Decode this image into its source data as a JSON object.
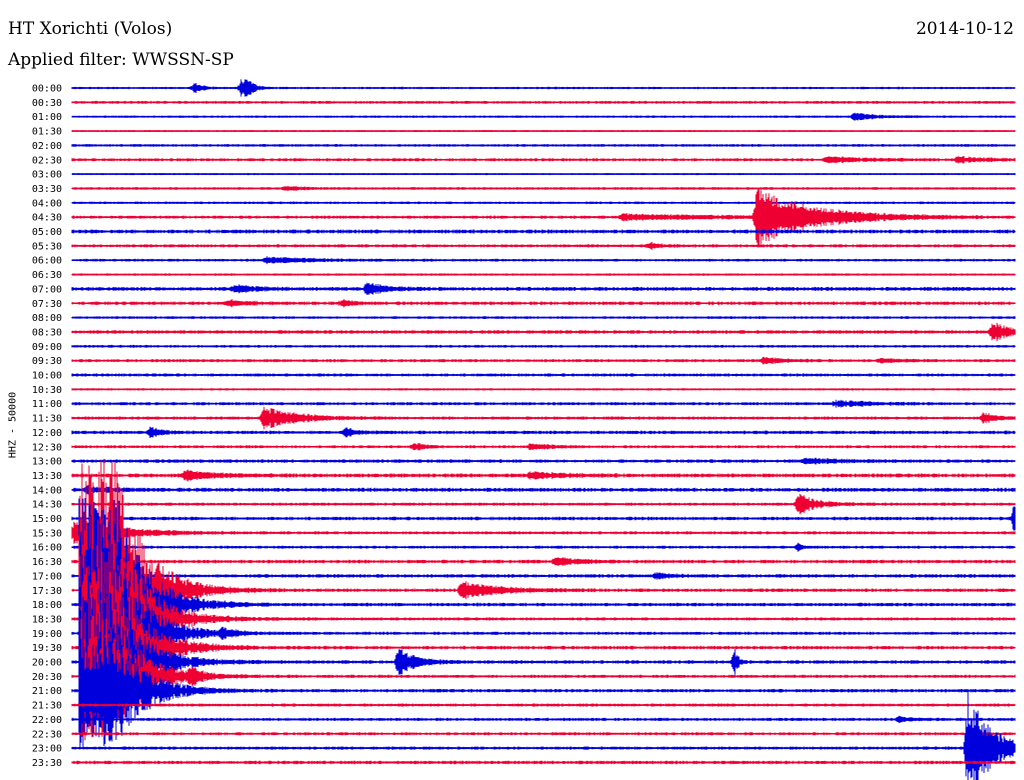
{
  "header": {
    "station": "HT Xorichti (Volos)",
    "date": "2014-10-12",
    "filter": "Applied filter: WWSSN-SP"
  },
  "channel_label": "HHZ - 50000",
  "colors": {
    "blue": "#0000dd",
    "red": "#ee0033"
  },
  "chart_data": {
    "type": "seismogram-helicorder",
    "rows": [
      "00:00",
      "00:30",
      "01:00",
      "01:30",
      "02:00",
      "02:30",
      "03:00",
      "03:30",
      "04:00",
      "04:30",
      "05:00",
      "05:30",
      "06:00",
      "06:30",
      "07:00",
      "07:30",
      "08:00",
      "08:30",
      "09:00",
      "09:30",
      "10:00",
      "10:30",
      "11:00",
      "11:30",
      "12:00",
      "12:30",
      "13:00",
      "13:30",
      "14:00",
      "14:30",
      "15:00",
      "15:30",
      "16:00",
      "16:30",
      "17:00",
      "17:30",
      "18:00",
      "18:30",
      "19:00",
      "19:30",
      "20:00",
      "20:30",
      "21:00",
      "21:30",
      "22:00",
      "22:30",
      "23:00",
      "23:30"
    ],
    "noise": [
      1.2,
      1.5,
      1.2,
      1.0,
      1.4,
      1.6,
      1.0,
      1.4,
      1.3,
      1.6,
      2.0,
      1.6,
      1.4,
      1.2,
      2.0,
      1.8,
      1.4,
      1.8,
      1.4,
      1.6,
      1.6,
      1.2,
      1.6,
      1.6,
      1.8,
      1.5,
      1.8,
      2.0,
      2.0,
      1.6,
      1.8,
      1.6,
      1.5,
      1.8,
      1.8,
      1.8,
      1.8,
      1.6,
      1.6,
      1.8,
      1.8,
      1.6,
      1.8,
      1.6,
      1.6,
      1.6,
      1.6,
      1.8
    ],
    "events": [
      {
        "row": "00:00",
        "minute": 3.9,
        "amp": 5,
        "dur": 0.4
      },
      {
        "row": "00:00",
        "minute": 5.4,
        "amp": 9,
        "dur": 0.3
      },
      {
        "row": "00:00",
        "minute": 5.6,
        "amp": 7,
        "dur": 0.3
      },
      {
        "row": "01:00",
        "minute": 24.9,
        "amp": 4,
        "dur": 1.0
      },
      {
        "row": "02:30",
        "minute": 24.0,
        "amp": 3,
        "dur": 1.4
      },
      {
        "row": "02:30",
        "minute": 28.2,
        "amp": 3,
        "dur": 1.2
      },
      {
        "row": "03:30",
        "minute": 6.8,
        "amp": 2,
        "dur": 0.8
      },
      {
        "row": "04:30",
        "minute": 21.8,
        "amp": 30,
        "dur": 2.4
      },
      {
        "row": "04:30",
        "minute": 17.5,
        "amp": 3,
        "dur": 4.0
      },
      {
        "row": "05:30",
        "minute": 18.4,
        "amp": 3,
        "dur": 0.5
      },
      {
        "row": "06:00",
        "minute": 6.2,
        "amp": 3,
        "dur": 2.0
      },
      {
        "row": "07:00",
        "minute": 9.4,
        "amp": 6,
        "dur": 0.8
      },
      {
        "row": "07:00",
        "minute": 5.2,
        "amp": 4,
        "dur": 0.8
      },
      {
        "row": "07:30",
        "minute": 5.0,
        "amp": 3,
        "dur": 0.8
      },
      {
        "row": "07:30",
        "minute": 8.6,
        "amp": 3,
        "dur": 0.6
      },
      {
        "row": "08:30",
        "minute": 29.3,
        "amp": 10,
        "dur": 0.8
      },
      {
        "row": "09:30",
        "minute": 22.0,
        "amp": 3,
        "dur": 1.0
      },
      {
        "row": "09:30",
        "minute": 25.7,
        "amp": 2,
        "dur": 1.0
      },
      {
        "row": "11:00",
        "minute": 24.3,
        "amp": 3,
        "dur": 1.5
      },
      {
        "row": "11:30",
        "minute": 6.1,
        "amp": 12,
        "dur": 1.4
      },
      {
        "row": "11:30",
        "minute": 29.0,
        "amp": 6,
        "dur": 0.5
      },
      {
        "row": "12:00",
        "minute": 2.5,
        "amp": 5,
        "dur": 0.5
      },
      {
        "row": "12:00",
        "minute": 8.7,
        "amp": 4,
        "dur": 0.5
      },
      {
        "row": "12:30",
        "minute": 10.9,
        "amp": 4,
        "dur": 0.5
      },
      {
        "row": "12:30",
        "minute": 14.6,
        "amp": 3,
        "dur": 1.0
      },
      {
        "row": "13:00",
        "minute": 23.3,
        "amp": 3,
        "dur": 1.5
      },
      {
        "row": "13:30",
        "minute": 3.6,
        "amp": 5,
        "dur": 1.2
      },
      {
        "row": "13:30",
        "minute": 14.6,
        "amp": 3,
        "dur": 1.5
      },
      {
        "row": "14:00",
        "minute": 0.5,
        "amp": 3,
        "dur": 1.2
      },
      {
        "row": "14:30",
        "minute": 23.1,
        "amp": 11,
        "dur": 0.8
      },
      {
        "row": "15:00",
        "minute": 30.0,
        "amp": 18,
        "dur": 0.2
      },
      {
        "row": "15:30",
        "minute": 0.1,
        "amp": 16,
        "dur": 1.8
      },
      {
        "row": "16:00",
        "minute": 23.1,
        "amp": 4,
        "dur": 0.3
      },
      {
        "row": "16:30",
        "minute": 15.4,
        "amp": 4,
        "dur": 1.0
      },
      {
        "row": "17:00",
        "minute": 18.6,
        "amp": 4,
        "dur": 0.5
      },
      {
        "row": "17:30",
        "minute": 12.4,
        "amp": 9,
        "dur": 1.5
      },
      {
        "row": "19:00",
        "minute": 4.8,
        "amp": 5,
        "dur": 0.5
      },
      {
        "row": "20:00",
        "minute": 10.4,
        "amp": 14,
        "dur": 0.8
      },
      {
        "row": "20:00",
        "minute": 21.1,
        "amp": 12,
        "dur": 0.15
      },
      {
        "row": "20:30",
        "minute": 3.8,
        "amp": 8,
        "dur": 0.4
      },
      {
        "row": "22:00",
        "minute": 26.3,
        "amp": 3,
        "dur": 0.6
      },
      {
        "row": "23:00",
        "minute": 28.5,
        "amp": 60,
        "dur": 1.0
      }
    ],
    "big_quake": {
      "start_row": "17:30",
      "minute": 0.2,
      "amp": 130,
      "dur": 5.0
    },
    "minutes_per_row": 30
  }
}
